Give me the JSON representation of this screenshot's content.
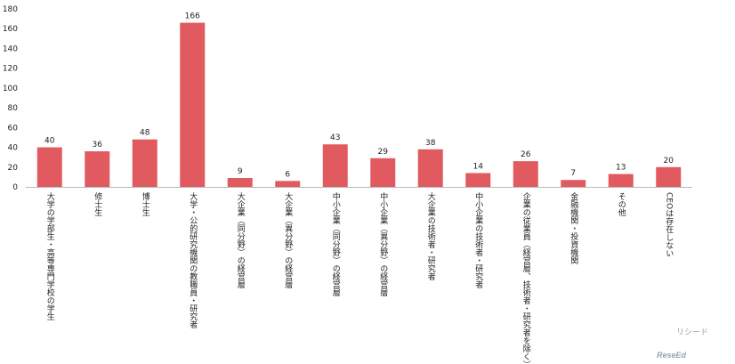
{
  "chart_data": {
    "type": "bar",
    "categories": [
      "大学の学部生・高等専門学校の学生",
      "修士生",
      "博士生",
      "大学・公的研究機関の教職員・研究者",
      "大企業（同分野）の経営層",
      "大企業（異分野）の経営層",
      "中小企業（同分野）の経営層",
      "中小企業（異分野）の経営層",
      "大企業の技術者・研究者",
      "中小企業の技術者・研究者",
      "企業の従業員（経営層、技術者・研究者を除く）",
      "金融機関・投資機関",
      "その他",
      "CEOは存在しない"
    ],
    "values": [
      40,
      36,
      48,
      166,
      9,
      6,
      43,
      29,
      38,
      14,
      26,
      7,
      13,
      20
    ],
    "color": "#e05a5f",
    "ylim": [
      0,
      180
    ],
    "yticks": [
      0,
      20,
      40,
      60,
      80,
      100,
      120,
      140,
      160,
      180
    ],
    "grid": false
  },
  "watermark": {
    "text": "ReseEd",
    "subtext": "リシード"
  }
}
